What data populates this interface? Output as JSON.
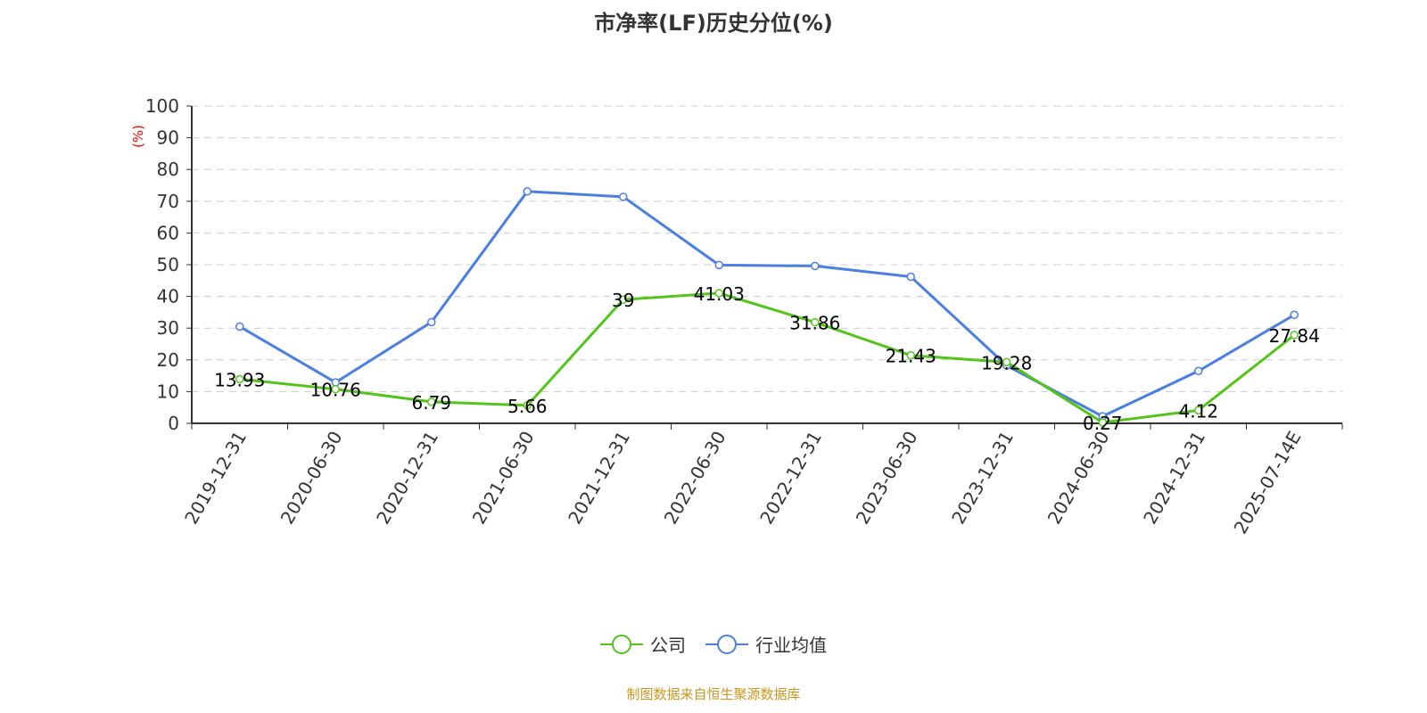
{
  "title": "市净率(LF)历史分位(%)",
  "source": "制图数据来自恒生聚源数据库",
  "colors": {
    "company": "#52c41a",
    "industry": "#4a7fe0",
    "unit": "#ff0000"
  },
  "chart_data": {
    "type": "line",
    "title": "市净率(LF)历史分位(%)",
    "ylabel": "(%)",
    "ylim": [
      0,
      100
    ],
    "yticks": [
      0,
      10,
      20,
      30,
      40,
      50,
      60,
      70,
      80,
      90,
      100
    ],
    "grid": true,
    "legend_position": "bottom",
    "categories": [
      "2019-12-31",
      "2020-06-30",
      "2020-12-31",
      "2021-06-30",
      "2021-12-31",
      "2022-06-30",
      "2022-12-31",
      "2023-06-30",
      "2023-12-31",
      "2024-06-30",
      "2024-12-31",
      "2025-07-14E"
    ],
    "series": [
      {
        "name": "公司",
        "values": [
          13.93,
          10.76,
          6.79,
          5.66,
          39,
          41.03,
          31.86,
          21.43,
          19.28,
          0.27,
          4.12,
          27.84
        ],
        "labels": [
          "13.93",
          "10.76",
          "6.79",
          "5.66",
          "39",
          "41.03",
          "31.86",
          "21.43",
          "19.28",
          "0.27",
          "4.12",
          "27.84"
        ]
      },
      {
        "name": "行业均值",
        "values": [
          30.5,
          12.9,
          31.9,
          73.1,
          71.4,
          49.9,
          49.6,
          46.2,
          18.2,
          2.2,
          16.5,
          34.2
        ]
      }
    ]
  }
}
